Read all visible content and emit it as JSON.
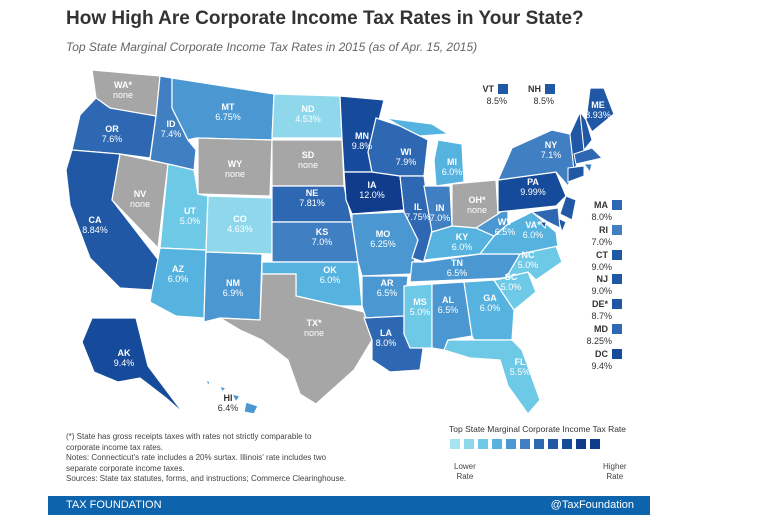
{
  "title": "How High Are Corporate Income Tax Rates in Your State?",
  "subtitle": "Top State Marginal Corporate Income Tax Rates in 2015 (as of Apr. 15, 2015)",
  "colors": {
    "c1": "#a7e4f2",
    "c2": "#8fd8ec",
    "c3": "#6ec9e6",
    "c4": "#56b3df",
    "c5": "#4a97d2",
    "c6": "#3f7fc2",
    "c7": "#2e68b2",
    "c8": "#2058a6",
    "c9": "#164a9a",
    "c10": "#0f3d8c",
    "none": "#a6a6a6",
    "border": "#ffffff"
  },
  "states": [
    {
      "abbr": "WA*",
      "value": "none",
      "color": "none"
    },
    {
      "abbr": "OR",
      "value": "7.6%",
      "color": "c7"
    },
    {
      "abbr": "CA",
      "value": "8.84%",
      "color": "c8"
    },
    {
      "abbr": "NV",
      "value": "none",
      "color": "none"
    },
    {
      "abbr": "ID",
      "value": "7.4%",
      "color": "c6"
    },
    {
      "abbr": "MT",
      "value": "6.75%",
      "color": "c5"
    },
    {
      "abbr": "WY",
      "value": "none",
      "color": "none"
    },
    {
      "abbr": "UT",
      "value": "5.0%",
      "color": "c3"
    },
    {
      "abbr": "AZ",
      "value": "6.0%",
      "color": "c4"
    },
    {
      "abbr": "CO",
      "value": "4.63%",
      "color": "c2"
    },
    {
      "abbr": "NM",
      "value": "6.9%",
      "color": "c5"
    },
    {
      "abbr": "ND",
      "value": "4.53%",
      "color": "c2"
    },
    {
      "abbr": "SD",
      "value": "none",
      "color": "none"
    },
    {
      "abbr": "NE",
      "value": "7.81%",
      "color": "c7"
    },
    {
      "abbr": "KS",
      "value": "7.0%",
      "color": "c6"
    },
    {
      "abbr": "OK",
      "value": "6.0%",
      "color": "c4"
    },
    {
      "abbr": "TX*",
      "value": "none",
      "color": "none"
    },
    {
      "abbr": "MN",
      "value": "9.8%",
      "color": "c9"
    },
    {
      "abbr": "IA",
      "value": "12.0%",
      "color": "c10"
    },
    {
      "abbr": "MO",
      "value": "6.25%",
      "color": "c5"
    },
    {
      "abbr": "AR",
      "value": "6.5%",
      "color": "c5"
    },
    {
      "abbr": "LA",
      "value": "8.0%",
      "color": "c7"
    },
    {
      "abbr": "WI",
      "value": "7.9%",
      "color": "c7"
    },
    {
      "abbr": "IL",
      "value": "7.75%",
      "color": "c7"
    },
    {
      "abbr": "MI",
      "value": "6.0%",
      "color": "c4"
    },
    {
      "abbr": "IN",
      "value": "7.0%",
      "color": "c6"
    },
    {
      "abbr": "OH*",
      "value": "none",
      "color": "none"
    },
    {
      "abbr": "KY",
      "value": "6.0%",
      "color": "c4"
    },
    {
      "abbr": "TN",
      "value": "6.5%",
      "color": "c5"
    },
    {
      "abbr": "MS",
      "value": "5.0%",
      "color": "c3"
    },
    {
      "abbr": "AL",
      "value": "6.5%",
      "color": "c5"
    },
    {
      "abbr": "GA",
      "value": "6.0%",
      "color": "c4"
    },
    {
      "abbr": "FL",
      "value": "5.5%",
      "color": "c3"
    },
    {
      "abbr": "SC",
      "value": "5.0%",
      "color": "c3"
    },
    {
      "abbr": "NC",
      "value": "5.0%",
      "color": "c3"
    },
    {
      "abbr": "VA*",
      "value": "6.0%",
      "color": "c4"
    },
    {
      "abbr": "WV",
      "value": "6.5%",
      "color": "c5"
    },
    {
      "abbr": "PA",
      "value": "9.99%",
      "color": "c9"
    },
    {
      "abbr": "NY",
      "value": "7.1%",
      "color": "c6"
    },
    {
      "abbr": "ME",
      "value": "8.93%",
      "color": "c8"
    },
    {
      "abbr": "AK",
      "value": "9.4%",
      "color": "c9"
    },
    {
      "abbr": "HI",
      "value": "6.4%",
      "color": "c5"
    }
  ],
  "small_states": [
    {
      "abbr": "VT",
      "value": "8.5%",
      "color": "c8"
    },
    {
      "abbr": "NH",
      "value": "8.5%",
      "color": "c8"
    },
    {
      "abbr": "MA",
      "value": "8.0%",
      "color": "c7"
    },
    {
      "abbr": "RI",
      "value": "7.0%",
      "color": "c6"
    },
    {
      "abbr": "CT",
      "value": "9.0%",
      "color": "c8"
    },
    {
      "abbr": "NJ",
      "value": "9.0%",
      "color": "c8"
    },
    {
      "abbr": "DE*",
      "value": "8.7%",
      "color": "c8"
    },
    {
      "abbr": "MD",
      "value": "8.25%",
      "color": "c7"
    },
    {
      "abbr": "DC",
      "value": "9.4%",
      "color": "c9"
    }
  ],
  "legend": {
    "title": "Top State Marginal Corporate Income Tax Rate",
    "low_line1": "Lower",
    "low_line2": "Rate",
    "high_line1": "Higher",
    "high_line2": "Rate",
    "steps": [
      "c1",
      "c2",
      "c3",
      "c4",
      "c5",
      "c6",
      "c7",
      "c8",
      "c9",
      "c10",
      "c10"
    ]
  },
  "footnotes": [
    "(*) State has gross receipts taxes with rates not strictly comparable to",
    "corporate income tax rates.",
    "Notes: Connecticut's rate includes a 20% surtax. Illinois' rate includes two",
    "separate corporate income taxes.",
    "Sources: State tax statutes, forms, and instructions; Commerce Clearinghouse."
  ],
  "footer": {
    "left": "TAX FOUNDATION",
    "right": "@TaxFoundation"
  }
}
